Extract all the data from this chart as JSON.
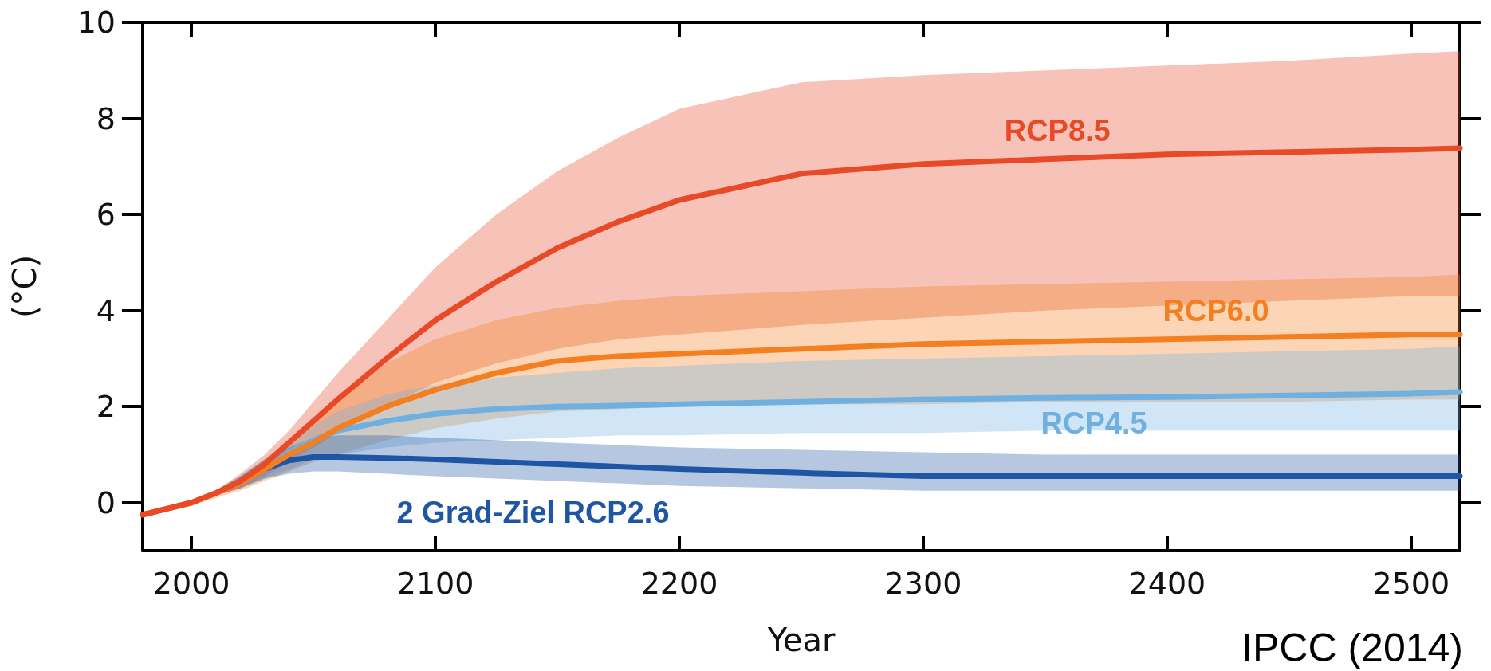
{
  "chart_data": {
    "type": "line",
    "xlabel": "Year",
    "ylabel": "(°C)",
    "annotations": [
      "IPCC (2014)"
    ],
    "xlim": [
      1980,
      2520
    ],
    "xticks": [
      2000,
      2100,
      2200,
      2300,
      2400,
      2500
    ],
    "ylim": [
      -1,
      10
    ],
    "yticks": [
      0,
      2,
      4,
      6,
      8,
      10
    ],
    "grid": false,
    "legend": false,
    "x": [
      1980,
      2000,
      2010,
      2020,
      2030,
      2040,
      2050,
      2060,
      2080,
      2100,
      2125,
      2150,
      2175,
      2200,
      2250,
      2300,
      2350,
      2400,
      2450,
      2500,
      2520
    ],
    "series": [
      {
        "name": "RCP8.5",
        "color": "#e84a27",
        "values": [
          -0.25,
          0,
          0.2,
          0.45,
          0.8,
          1.25,
          1.7,
          2.15,
          3.0,
          3.8,
          4.6,
          5.3,
          5.85,
          6.3,
          6.85,
          7.05,
          7.15,
          7.25,
          7.3,
          7.35,
          7.38
        ],
        "upper": [
          -0.2,
          0.05,
          0.25,
          0.6,
          1.0,
          1.5,
          2.1,
          2.7,
          3.8,
          4.9,
          6.0,
          6.9,
          7.6,
          8.2,
          8.75,
          8.9,
          9.0,
          9.1,
          9.2,
          9.35,
          9.4
        ],
        "lower": [
          -0.3,
          -0.05,
          0.15,
          0.3,
          0.55,
          0.85,
          1.15,
          1.45,
          2.0,
          2.5,
          2.9,
          3.2,
          3.4,
          3.5,
          3.7,
          3.85,
          4.0,
          4.1,
          4.2,
          4.3,
          4.3
        ]
      },
      {
        "name": "RCP6.0",
        "color": "#f47f20",
        "values": [
          -0.25,
          0,
          0.2,
          0.4,
          0.7,
          1.0,
          1.25,
          1.55,
          2.0,
          2.35,
          2.7,
          2.95,
          3.05,
          3.1,
          3.2,
          3.3,
          3.35,
          3.4,
          3.45,
          3.5,
          3.5
        ],
        "upper": [
          -0.2,
          0.05,
          0.25,
          0.5,
          0.9,
          1.3,
          1.7,
          2.15,
          2.9,
          3.4,
          3.8,
          4.05,
          4.2,
          4.3,
          4.4,
          4.5,
          4.55,
          4.6,
          4.65,
          4.7,
          4.75
        ],
        "lower": [
          -0.3,
          -0.05,
          0.1,
          0.25,
          0.45,
          0.65,
          0.85,
          1.0,
          1.3,
          1.55,
          1.75,
          1.9,
          1.95,
          2.0,
          2.05,
          2.05,
          2.1,
          2.1,
          2.1,
          2.15,
          2.15
        ]
      },
      {
        "name": "RCP4.5",
        "color": "#6fb0e0",
        "values": [
          null,
          null,
          null,
          0.45,
          0.75,
          1.05,
          1.3,
          1.5,
          1.7,
          1.85,
          1.95,
          2.0,
          2.02,
          2.05,
          2.1,
          2.15,
          2.18,
          2.2,
          2.23,
          2.27,
          2.3
        ],
        "upper": [
          -0.2,
          0.05,
          0.25,
          0.55,
          0.9,
          1.25,
          1.6,
          1.9,
          2.25,
          2.45,
          2.6,
          2.7,
          2.8,
          2.85,
          2.95,
          3.0,
          3.05,
          3.1,
          3.15,
          3.2,
          3.25
        ],
        "lower": [
          -0.3,
          -0.05,
          0.15,
          0.3,
          0.5,
          0.7,
          0.9,
          1.0,
          1.15,
          1.25,
          1.3,
          1.35,
          1.4,
          1.4,
          1.45,
          1.45,
          1.5,
          1.5,
          1.5,
          1.5,
          1.5
        ]
      },
      {
        "name": "2 Grad-Ziel RCP2.6",
        "color": "#1f55a5",
        "values": [
          null,
          null,
          null,
          null,
          0.7,
          0.88,
          0.95,
          0.95,
          0.93,
          0.9,
          0.85,
          0.8,
          0.75,
          0.7,
          0.62,
          0.55,
          0.55,
          0.55,
          0.55,
          0.55,
          0.55
        ],
        "upper": [
          -0.2,
          0.05,
          0.25,
          0.55,
          0.9,
          1.15,
          1.35,
          1.4,
          1.4,
          1.35,
          1.3,
          1.25,
          1.2,
          1.15,
          1.1,
          1.05,
          1.0,
          1.0,
          1.0,
          1.0,
          1.0
        ],
        "lower": [
          -0.3,
          -0.05,
          0.15,
          0.3,
          0.5,
          0.6,
          0.65,
          0.65,
          0.6,
          0.55,
          0.5,
          0.45,
          0.4,
          0.35,
          0.3,
          0.25,
          0.25,
          0.25,
          0.25,
          0.25,
          0.25
        ]
      }
    ]
  }
}
